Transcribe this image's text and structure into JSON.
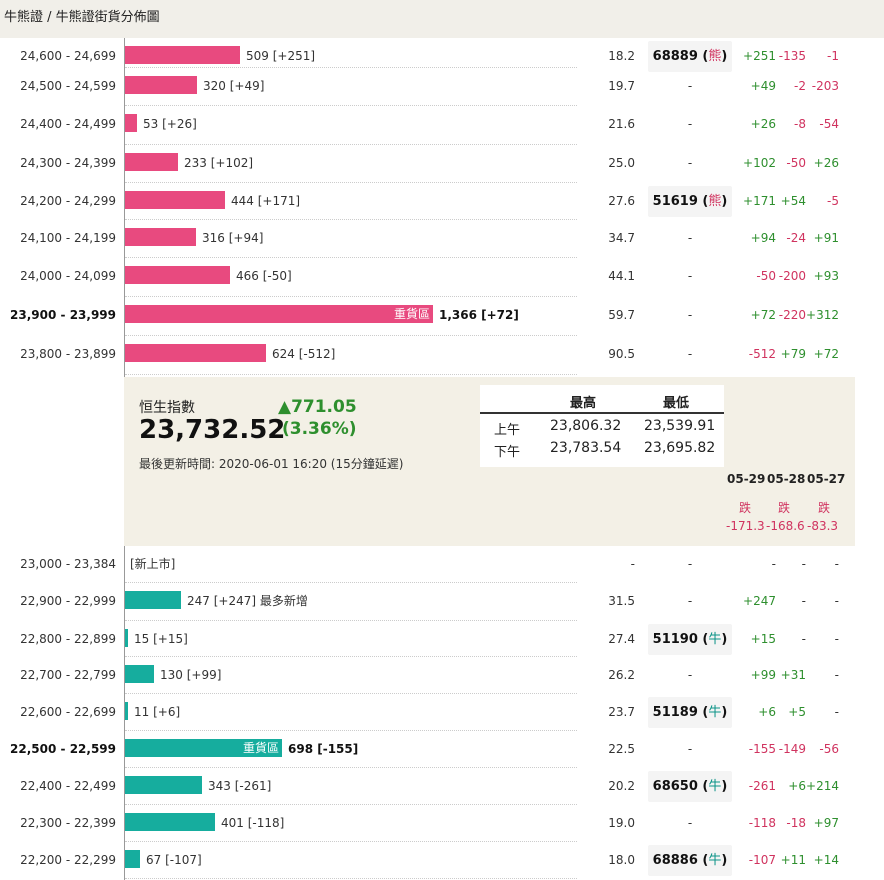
{
  "breadcrumb": "牛熊證 / 牛熊證街貨分佈圖",
  "heavy_label": "重貨區",
  "bear_rows": [
    {
      "range": "24,600 - 24,699",
      "value": 509,
      "label": "509 [+251]",
      "pct": "18.2",
      "code": "68889",
      "code_type": "熊",
      "d1": "+251",
      "d2": "-135",
      "d3": "-1"
    },
    {
      "range": "24,500 - 24,599",
      "value": 320,
      "label": "320 [+49]",
      "pct": "19.7",
      "code": "-",
      "d1": "+49",
      "d2": "-2",
      "d3": "-203"
    },
    {
      "range": "24,400 - 24,499",
      "value": 53,
      "label": "53 [+26]",
      "pct": "21.6",
      "code": "-",
      "d1": "+26",
      "d2": "-8",
      "d3": "-54"
    },
    {
      "range": "24,300 - 24,399",
      "value": 233,
      "label": "233 [+102]",
      "pct": "25.0",
      "code": "-",
      "d1": "+102",
      "d2": "-50",
      "d3": "+26"
    },
    {
      "range": "24,200 - 24,299",
      "value": 444,
      "label": "444 [+171]",
      "pct": "27.6",
      "code": "51619",
      "code_type": "熊",
      "d1": "+171",
      "d2": "+54",
      "d3": "-5"
    },
    {
      "range": "24,100 - 24,199",
      "value": 316,
      "label": "316 [+94]",
      "pct": "34.7",
      "code": "-",
      "d1": "+94",
      "d2": "-24",
      "d3": "+91"
    },
    {
      "range": "24,000 - 24,099",
      "value": 466,
      "label": "466 [-50]",
      "pct": "44.1",
      "code": "-",
      "d1": "-50",
      "d2": "-200",
      "d3": "+93"
    },
    {
      "range": "23,900 - 23,999",
      "value": 1366,
      "label": "1,366 [+72]",
      "pct": "59.7",
      "code": "-",
      "heavy": true,
      "d1": "+72",
      "d2": "-220",
      "d3": "+312"
    },
    {
      "range": "23,800 - 23,899",
      "value": 624,
      "label": "624 [-512]",
      "pct": "90.5",
      "code": "-",
      "d1": "-512",
      "d2": "+79",
      "d3": "+72"
    }
  ],
  "index_panel": {
    "title": "恒生指數",
    "value": "23,732.52",
    "change": "▲771.05",
    "change_pct": "(3.36%)",
    "updated": "最後更新時間: 2020-06-01 16:20 (15分鐘延遲)",
    "high_label": "最高",
    "low_label": "最低",
    "am_label": "上午",
    "pm_label": "下午",
    "am_high": "23,806.32",
    "am_low": "23,539.91",
    "pm_high": "23,783.54",
    "pm_low": "23,695.82",
    "dates": [
      "05-29",
      "05-28",
      "05-27"
    ],
    "directions": [
      "跌",
      "跌",
      "跌"
    ],
    "date_values": [
      "-171.3",
      "-168.6",
      "-83.3"
    ]
  },
  "bull_rows": [
    {
      "range": "23,000 - 23,384",
      "value": 0,
      "label": "[新上市]",
      "pct": "-",
      "code": "-",
      "d1": "-",
      "d2": "-",
      "d3": "-"
    },
    {
      "range": "22,900 - 22,999",
      "value": 247,
      "label": "247 [+247] 最多新增",
      "pct": "31.5",
      "code": "-",
      "d1": "+247",
      "d2": "-",
      "d3": "-"
    },
    {
      "range": "22,800 - 22,899",
      "value": 15,
      "label": "15 [+15]",
      "pct": "27.4",
      "code": "51190",
      "code_type": "牛",
      "d1": "+15",
      "d2": "-",
      "d3": "-"
    },
    {
      "range": "22,700 - 22,799",
      "value": 130,
      "label": "130 [+99]",
      "pct": "26.2",
      "code": "-",
      "d1": "+99",
      "d2": "+31",
      "d3": "-"
    },
    {
      "range": "22,600 - 22,699",
      "value": 11,
      "label": "11 [+6]",
      "pct": "23.7",
      "code": "51189",
      "code_type": "牛",
      "d1": "+6",
      "d2": "+5",
      "d3": "-"
    },
    {
      "range": "22,500 - 22,599",
      "value": 698,
      "label": "698 [-155]",
      "pct": "22.5",
      "code": "-",
      "heavy": true,
      "d1": "-155",
      "d2": "-149",
      "d3": "-56"
    },
    {
      "range": "22,400 - 22,499",
      "value": 343,
      "label": "343 [-261]",
      "pct": "20.2",
      "code": "68650",
      "code_type": "牛",
      "d1": "-261",
      "d2": "+6",
      "d3": "+214"
    },
    {
      "range": "22,300 - 22,399",
      "value": 401,
      "label": "401 [-118]",
      "pct": "19.0",
      "code": "-",
      "d1": "-118",
      "d2": "-18",
      "d3": "+97"
    },
    {
      "range": "22,200 - 22,299",
      "value": 67,
      "label": "67 [-107]",
      "pct": "18.0",
      "code": "68886",
      "code_type": "牛",
      "d1": "-107",
      "d2": "+11",
      "d3": "+14"
    }
  ]
}
